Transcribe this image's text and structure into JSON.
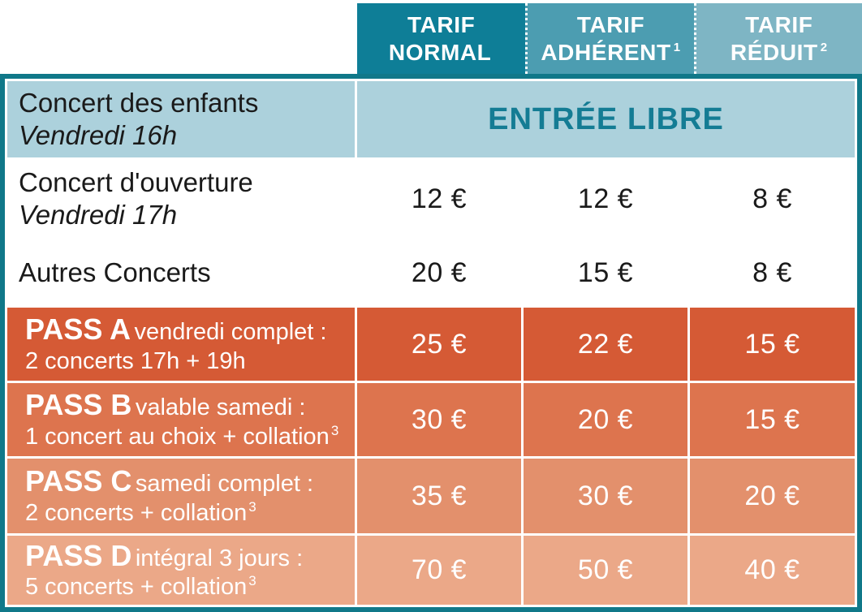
{
  "colors": {
    "header_normal": "#0E7E97",
    "header_adherent": "#4C9DB1",
    "header_reduit": "#7EB5C4",
    "border_teal": "#107889",
    "free_row_bg": "#ACD1DC",
    "accent_teal": "#147C94",
    "pass_a_bg": "#D55A35",
    "pass_b_bg": "#DD744E",
    "pass_c_bg": "#E3906C",
    "pass_d_bg": "#EBA888",
    "text_dark": "#1A1A1A",
    "white": "#FFFFFF"
  },
  "header": {
    "columns": [
      {
        "line1": "TARIF",
        "line2": "NORMAL",
        "sup": ""
      },
      {
        "line1": "TARIF",
        "line2": "ADHÉRENT",
        "sup": "1"
      },
      {
        "line1": "TARIF",
        "line2": "RÉDUIT",
        "sup": "2"
      }
    ]
  },
  "rows": [
    {
      "title": "Concert des enfants",
      "subtitle": "Vendredi 16h",
      "value": "ENTRÉE LIBRE"
    },
    {
      "title": "Concert d'ouverture",
      "subtitle": "Vendredi 17h",
      "prices": [
        "12 €",
        "12 €",
        "8 €"
      ]
    },
    {
      "title": "Autres Concerts",
      "prices": [
        "20 €",
        "15 €",
        "8 €"
      ]
    },
    {
      "pass_name": "PASS A",
      "desc": "vendredi complet :",
      "detail": "2 concerts 17h + 19h",
      "detail_sup": "",
      "prices": [
        "25 €",
        "22 €",
        "15 €"
      ]
    },
    {
      "pass_name": "PASS B",
      "desc": "valable samedi :",
      "detail": "1 concert au choix + collation",
      "detail_sup": "3",
      "prices": [
        "30 €",
        "20 €",
        "15 €"
      ]
    },
    {
      "pass_name": "PASS C",
      "desc": "samedi complet :",
      "detail": "2 concerts + collation",
      "detail_sup": "3",
      "prices": [
        "35 €",
        "30 €",
        "20 €"
      ]
    },
    {
      "pass_name": "PASS D",
      "desc": "intégral 3 jours :",
      "detail": "5 concerts + collation",
      "detail_sup": "3",
      "prices": [
        "70 €",
        "50 €",
        "40 €"
      ]
    }
  ]
}
